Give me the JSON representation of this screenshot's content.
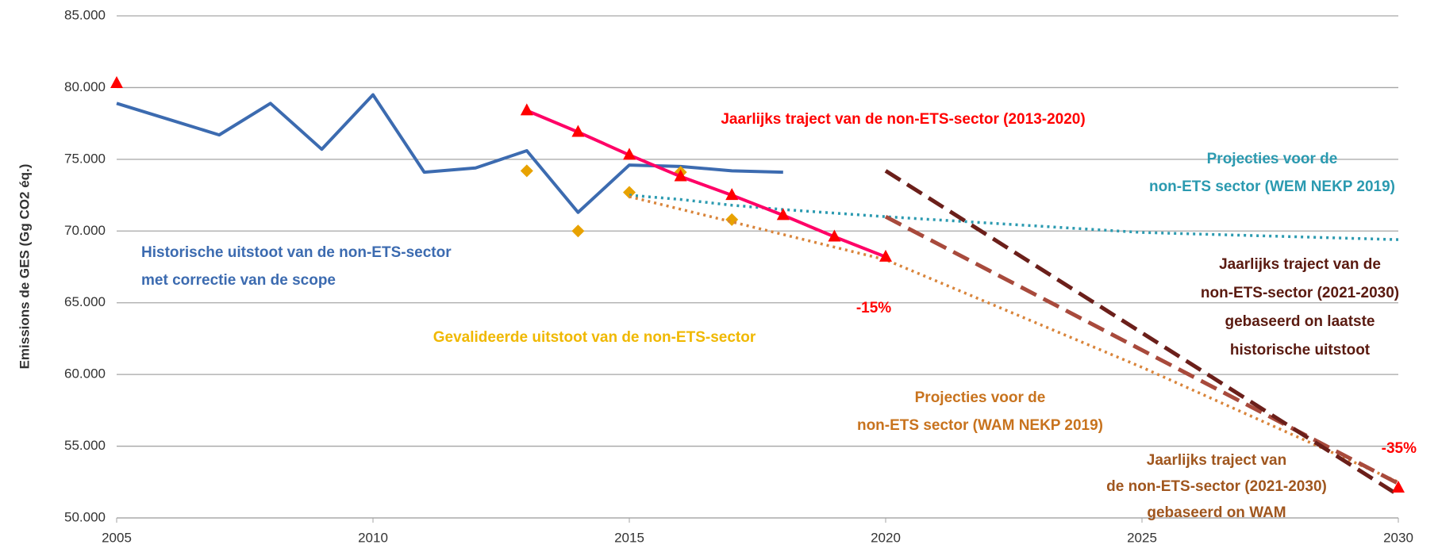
{
  "chart_data": {
    "type": "line",
    "y_label": "Emissions de GES (Gg CO2 éq.)",
    "xlim": [
      2005,
      2030
    ],
    "xticks": [
      2005,
      2010,
      2015,
      2020,
      2025,
      2030
    ],
    "ylim": [
      50000,
      85000
    ],
    "yticks": [
      {
        "value": 50000,
        "label": "50.000"
      },
      {
        "value": 55000,
        "label": "55.000"
      },
      {
        "value": 60000,
        "label": "60.000"
      },
      {
        "value": 65000,
        "label": "65.000"
      },
      {
        "value": 70000,
        "label": "70.000"
      },
      {
        "value": 75000,
        "label": "75.000"
      },
      {
        "value": 80000,
        "label": "80.000"
      },
      {
        "value": 85000,
        "label": "85.000"
      }
    ],
    "grid": true,
    "series": [
      {
        "color": "#3c6bb0",
        "line_style": "solid",
        "marker": "none",
        "x": [
          2005,
          2006,
          2007,
          2008,
          2009,
          2010,
          2011,
          2012,
          2013,
          2014,
          2015,
          2016,
          2017,
          2018
        ],
        "values": [
          78900,
          77800,
          76700,
          78900,
          75700,
          79500,
          74100,
          74400,
          75600,
          71300,
          74600,
          74500,
          74200,
          74100
        ]
      },
      {
        "color": "#e8a200",
        "line_style": "none",
        "marker": "diamond",
        "x": [
          2013,
          2014,
          2015,
          2016,
          2017
        ],
        "values": [
          74200,
          70000,
          72700,
          74100,
          70800
        ]
      },
      {
        "color": "#2b9ab0",
        "line_style": "dotted",
        "marker": "none",
        "x": [
          2015,
          2016,
          2017,
          2018,
          2020,
          2025,
          2030
        ],
        "values": [
          72500,
          72200,
          71800,
          71500,
          71000,
          69900,
          69400
        ]
      },
      {
        "color": "#d9843a",
        "line_style": "dotted",
        "marker": "none",
        "x": [
          2015,
          2020,
          2025,
          2030
        ],
        "values": [
          72400,
          68000,
          60500,
          52500
        ]
      },
      {
        "color": "#a84a3c",
        "line_style": "dashed",
        "marker": "none",
        "x": [
          2020,
          2030
        ],
        "values": [
          71000,
          52400
        ]
      },
      {
        "color": "#6b1f1a",
        "line_style": "dashed",
        "marker": "none",
        "x": [
          2020,
          2030
        ],
        "values": [
          74200,
          51600
        ]
      },
      {
        "color": "#ff0066",
        "line_style": "solid",
        "marker": "triangle",
        "marker_color": "#ff0000",
        "x": [
          2013,
          2014,
          2015,
          2016,
          2017,
          2018,
          2019,
          2020
        ],
        "values": [
          78400,
          76900,
          75300,
          73800,
          72500,
          71100,
          69600,
          68200
        ]
      },
      {
        "color": "#ff0000",
        "line_style": "none",
        "marker": "triangle",
        "x": [
          2005,
          2030
        ],
        "values": [
          80300,
          52100
        ]
      }
    ],
    "annotations": [
      {
        "color": "#ff0000",
        "lines": [
          "Jaarlijks traject van de non-ETS-sector (2013-2020)"
        ]
      },
      {
        "color": "#2b9ab0",
        "lines": [
          "Projecties voor de",
          "non-ETS sector (WEM NEKP 2019)"
        ]
      },
      {
        "color": "#3c6bb0",
        "lines": [
          "Historische  uitstoot van de non-ETS-sector",
          "met correctie van de scope"
        ]
      },
      {
        "color": "#ff0000",
        "lines": [
          "-15%"
        ]
      },
      {
        "color": "#f0b800",
        "lines": [
          "Gevalideerde  uitstoot van de non-ETS-sector"
        ]
      },
      {
        "color": "#5a1a10",
        "lines": [
          "Jaarlijks traject van de",
          "non-ETS-sector (2021-2030)",
          "gebaseerd on laatste",
          "historische uitstoot"
        ]
      },
      {
        "color": "#c8731e",
        "lines": [
          "Projecties voor de",
          "non-ETS sector (WAM NEKP 2019)"
        ]
      },
      {
        "color": "#ff0000",
        "lines": [
          "-35%"
        ]
      },
      {
        "color": "#a0561e",
        "lines": [
          "Jaarlijks traject van",
          "de non-ETS-sector (2021-2030)",
          "gebaseerd on WAM"
        ]
      }
    ]
  }
}
